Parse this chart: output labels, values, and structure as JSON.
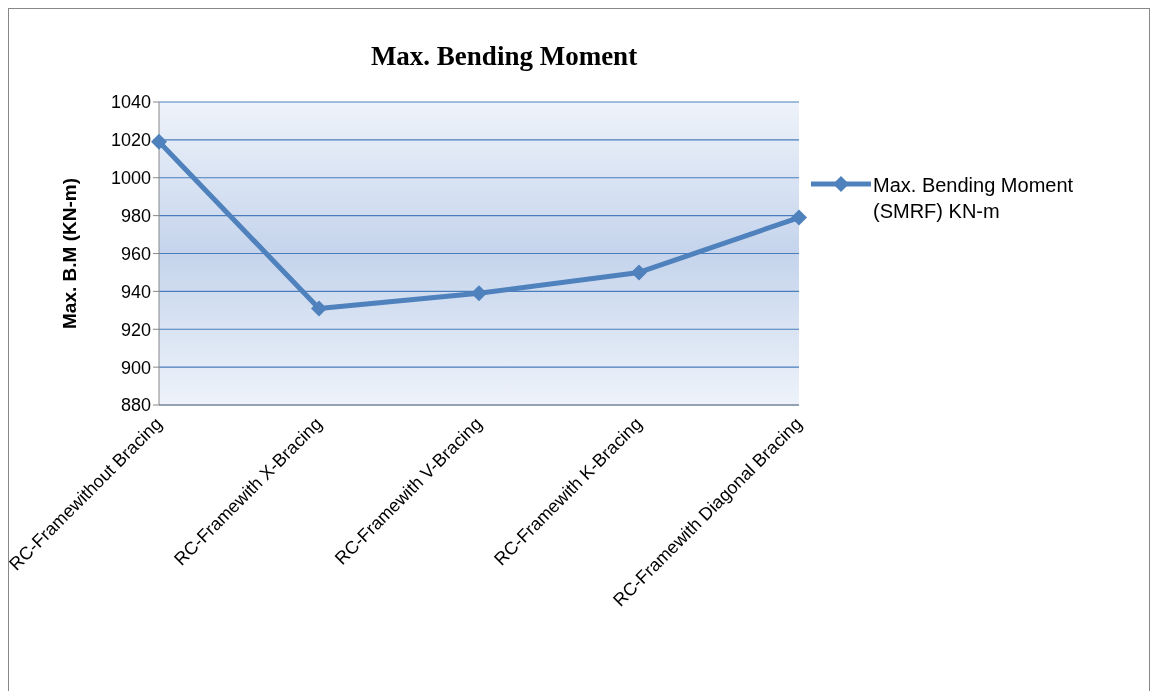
{
  "chart_data": {
    "type": "line",
    "title": "Max. Bending Moment",
    "ylabel": "Max. B.M (KN-m)",
    "categories": [
      "RC-Framewithout Bracing",
      "RC-Framewith X-Bracing",
      "RC-Framewith V-Bracing",
      "RC-Framewith K-Bracing",
      "RC-Framewith Diagonal Bracing"
    ],
    "series": [
      {
        "name": "Max. Bending Moment (SMRF) KN-m",
        "color": "#4f81bd",
        "values": [
          1019,
          931,
          939,
          950,
          979
        ]
      }
    ],
    "ylim": [
      880,
      1040
    ],
    "yticks": [
      880,
      900,
      920,
      940,
      960,
      980,
      1000,
      1020,
      1040
    ],
    "grid": "y",
    "legend": "right",
    "marker": "diamond",
    "line_style": "solid"
  }
}
